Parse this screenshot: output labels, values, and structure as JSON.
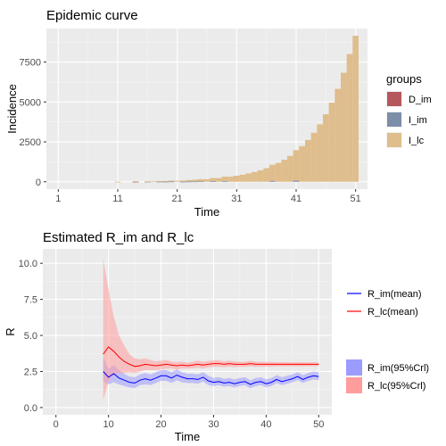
{
  "chart_data": [
    {
      "type": "bar",
      "stacked": true,
      "title": "Epidemic curve",
      "xlabel": "Time",
      "ylabel": "Incidence",
      "xlim": [
        -1,
        53
      ],
      "ylim": [
        -460,
        9600
      ],
      "x_ticks": [
        1,
        11,
        21,
        31,
        41,
        51
      ],
      "y_ticks": [
        0,
        2500,
        5000,
        7500
      ],
      "legend_title": "groups",
      "legend_position": "right",
      "grid": true,
      "series": [
        {
          "name": "D_im",
          "color": "#b5585d",
          "values": [
            0,
            0,
            0,
            0,
            0,
            0,
            0,
            0,
            0,
            0,
            0,
            0,
            0,
            8,
            0,
            0,
            0,
            0,
            0,
            0,
            0,
            0,
            0,
            0,
            0,
            0,
            0,
            0,
            0,
            0,
            0,
            0,
            0,
            0,
            0,
            0,
            0,
            0,
            0,
            0,
            0,
            0,
            0,
            0,
            0,
            0,
            0,
            0,
            0,
            0,
            0
          ]
        },
        {
          "name": "I_im",
          "color": "#7d8ea8",
          "values": [
            0,
            0,
            0,
            0,
            0,
            0,
            0,
            0,
            0,
            0,
            0,
            0,
            0,
            10,
            0,
            10,
            0,
            15,
            10,
            20,
            0,
            10,
            20,
            25,
            30,
            0,
            40,
            0,
            50,
            0,
            0,
            0,
            0,
            0,
            0,
            0,
            60,
            0,
            0,
            0,
            80,
            0,
            0,
            0,
            0,
            0,
            0,
            0,
            0,
            0,
            0
          ]
        },
        {
          "name": "I_lc",
          "color": "#dfbd8c",
          "values": [
            0,
            0,
            0,
            0,
            0,
            0,
            0,
            0,
            0,
            0,
            5,
            0,
            0,
            15,
            0,
            20,
            25,
            30,
            40,
            50,
            60,
            70,
            90,
            110,
            130,
            160,
            190,
            230,
            270,
            320,
            380,
            440,
            520,
            610,
            720,
            850,
            1000,
            1180,
            1380,
            1620,
            1900,
            2230,
            2620,
            3070,
            3600,
            4230,
            4960,
            5820,
            6830,
            8000,
            9150
          ]
        }
      ]
    },
    {
      "type": "line",
      "title": "Estimated R_im and R_lc",
      "xlabel": "Time",
      "ylabel": "R",
      "xlim": [
        -2.5,
        52.5
      ],
      "ylim": [
        -0.5,
        11
      ],
      "x_ticks": [
        0,
        10,
        20,
        30,
        40,
        50
      ],
      "y_ticks": [
        0.0,
        2.5,
        5.0,
        7.5,
        10.0
      ],
      "y_tick_labels": [
        "0.0",
        "2.5",
        "5.0",
        "7.5",
        "10.0"
      ],
      "legend_position": "right",
      "grid": true,
      "x": [
        9,
        10,
        11,
        12,
        13,
        14,
        15,
        16,
        17,
        18,
        19,
        20,
        21,
        22,
        23,
        24,
        25,
        26,
        27,
        28,
        29,
        30,
        31,
        32,
        33,
        34,
        35,
        36,
        37,
        38,
        39,
        40,
        41,
        42,
        43,
        44,
        45,
        46,
        47,
        48,
        49,
        50
      ],
      "series": [
        {
          "name": "R_im(mean)",
          "kind": "line",
          "color": "#0000ff",
          "values": [
            2.5,
            2.1,
            2.35,
            2.05,
            1.9,
            1.75,
            1.7,
            1.9,
            2.0,
            1.9,
            2.05,
            2.2,
            2.2,
            2.05,
            2.25,
            2.1,
            2.0,
            2.0,
            1.95,
            2.1,
            1.85,
            1.75,
            1.8,
            1.7,
            1.75,
            1.65,
            1.75,
            1.8,
            1.6,
            1.75,
            1.8,
            1.65,
            1.75,
            1.95,
            1.8,
            1.9,
            2.0,
            2.15,
            1.95,
            2.1,
            2.2,
            2.15
          ]
        },
        {
          "name": "R_lc(mean)",
          "kind": "line",
          "color": "#ff0000",
          "values": [
            3.7,
            4.2,
            3.9,
            3.5,
            3.2,
            3.0,
            2.85,
            2.9,
            3.0,
            2.95,
            2.9,
            2.95,
            3.0,
            2.95,
            2.9,
            2.95,
            2.9,
            2.95,
            3.0,
            2.95,
            3.0,
            3.05,
            3.05,
            3.0,
            3.05,
            3.0,
            3.0,
            3.0,
            3.05,
            3.0,
            3.0,
            3.0,
            3.0,
            3.0,
            3.0,
            3.0,
            3.0,
            3.0,
            3.0,
            3.0,
            3.0,
            3.0
          ]
        },
        {
          "name": "R_im(95%Crl)",
          "kind": "band",
          "color": "#9c9cff",
          "lower": [
            1.8,
            1.6,
            1.75,
            1.6,
            1.5,
            1.4,
            1.35,
            1.55,
            1.6,
            1.55,
            1.7,
            1.85,
            1.85,
            1.7,
            1.9,
            1.75,
            1.7,
            1.7,
            1.65,
            1.8,
            1.55,
            1.5,
            1.55,
            1.45,
            1.5,
            1.4,
            1.5,
            1.55,
            1.35,
            1.5,
            1.55,
            1.4,
            1.5,
            1.7,
            1.55,
            1.65,
            1.75,
            1.9,
            1.7,
            1.85,
            1.95,
            1.9
          ],
          "upper": [
            3.5,
            2.7,
            2.95,
            2.6,
            2.35,
            2.15,
            2.1,
            2.3,
            2.4,
            2.3,
            2.45,
            2.6,
            2.6,
            2.45,
            2.65,
            2.45,
            2.35,
            2.35,
            2.3,
            2.45,
            2.2,
            2.05,
            2.1,
            2.0,
            2.05,
            1.95,
            2.05,
            2.1,
            1.9,
            2.05,
            2.1,
            1.95,
            2.05,
            2.25,
            2.1,
            2.2,
            2.3,
            2.45,
            2.25,
            2.4,
            2.5,
            2.45
          ]
        },
        {
          "name": "R_lc(95%Crl)",
          "kind": "band",
          "color": "#ff9c9c",
          "lower": [
            0.5,
            1.8,
            2.3,
            2.4,
            2.4,
            2.45,
            2.4,
            2.5,
            2.6,
            2.6,
            2.6,
            2.65,
            2.7,
            2.7,
            2.65,
            2.7,
            2.7,
            2.72,
            2.75,
            2.72,
            2.78,
            2.82,
            2.82,
            2.8,
            2.84,
            2.8,
            2.82,
            2.82,
            2.86,
            2.82,
            2.83,
            2.84,
            2.84,
            2.85,
            2.85,
            2.85,
            2.86,
            2.86,
            2.86,
            2.87,
            2.87,
            2.87
          ],
          "upper": [
            10.3,
            8.2,
            6.3,
            5.0,
            4.3,
            3.7,
            3.4,
            3.35,
            3.4,
            3.3,
            3.2,
            3.25,
            3.3,
            3.2,
            3.15,
            3.2,
            3.1,
            3.18,
            3.25,
            3.18,
            3.22,
            3.28,
            3.28,
            3.2,
            3.26,
            3.2,
            3.18,
            3.18,
            3.24,
            3.18,
            3.17,
            3.16,
            3.16,
            3.15,
            3.15,
            3.15,
            3.14,
            3.14,
            3.14,
            3.13,
            3.13,
            3.13
          ]
        }
      ]
    }
  ]
}
